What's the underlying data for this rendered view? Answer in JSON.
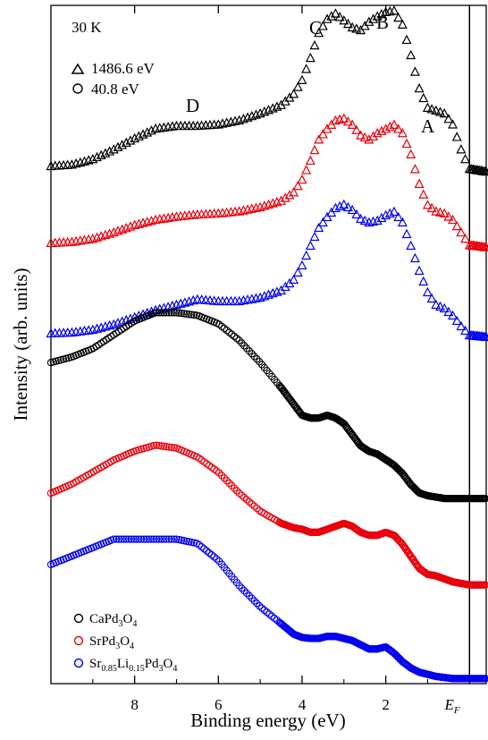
{
  "chart_data": {
    "type": "scatter",
    "temperature_label": "30 K",
    "xlabel": "Binding energy (eV)",
    "ylabel": "Intensity (arb. units)",
    "x_reversed": true,
    "xlim": [
      10,
      -0.4
    ],
    "xticks": [
      {
        "value": 8,
        "label": "8"
      },
      {
        "value": 6,
        "label": "6"
      },
      {
        "value": 4,
        "label": "4"
      },
      {
        "value": 2,
        "label": "2"
      }
    ],
    "ef_label": {
      "main": "E",
      "sub": "F"
    },
    "ef_value": 0,
    "grid": false,
    "peak_labels": [
      {
        "text": "D",
        "x": 6.8
      },
      {
        "text": "C",
        "x": 3.4
      },
      {
        "text": "B",
        "x": 1.75
      },
      {
        "text": "A",
        "x": 0.6
      }
    ],
    "photon_legend": [
      {
        "marker": "triangle",
        "label": "1486.6 eV"
      },
      {
        "marker": "circle",
        "label": "40.8 eV"
      }
    ],
    "sample_legend": [
      {
        "color": "#000000",
        "parts": [
          {
            "t": "CaPd"
          },
          {
            "t": "3",
            "sub": true
          },
          {
            "t": "O"
          },
          {
            "t": "4",
            "sub": true
          }
        ]
      },
      {
        "color": "#e8000b",
        "parts": [
          {
            "t": "SrPd"
          },
          {
            "t": "3",
            "sub": true
          },
          {
            "t": "O"
          },
          {
            "t": "4",
            "sub": true
          }
        ]
      },
      {
        "color": "#0000ee",
        "parts": [
          {
            "t": "Sr"
          },
          {
            "t": "0.85",
            "sub": true
          },
          {
            "t": "Li"
          },
          {
            "t": "0.15",
            "sub": true
          },
          {
            "t": "Pd"
          },
          {
            "t": "3",
            "sub": true
          },
          {
            "t": "O"
          },
          {
            "t": "4",
            "sub": true
          }
        ]
      }
    ],
    "series": [
      {
        "name": "CaPd3O4",
        "photon": "1486.6 eV",
        "marker": "triangle",
        "color": "#000000",
        "x": [
          10.0,
          9.5,
          9.0,
          8.5,
          8.0,
          7.5,
          7.0,
          6.5,
          6.0,
          5.5,
          5.0,
          4.5,
          4.2,
          4.0,
          3.8,
          3.6,
          3.4,
          3.2,
          3.0,
          2.8,
          2.6,
          2.4,
          2.2,
          2.0,
          1.8,
          1.6,
          1.4,
          1.2,
          1.0,
          0.8,
          0.6,
          0.4,
          0.2,
          0.0,
          -0.4
        ],
        "y": [
          0.0,
          0.01,
          0.05,
          0.12,
          0.2,
          0.27,
          0.29,
          0.29,
          0.3,
          0.33,
          0.38,
          0.44,
          0.52,
          0.62,
          0.78,
          0.96,
          1.06,
          1.1,
          1.05,
          1.0,
          0.98,
          1.04,
          1.08,
          1.11,
          1.12,
          1.02,
          0.8,
          0.56,
          0.42,
          0.4,
          0.38,
          0.3,
          0.12,
          -0.02,
          -0.04
        ]
      },
      {
        "name": "SrPd3O4",
        "photon": "1486.6 eV",
        "marker": "triangle",
        "color": "#e8000b",
        "x": [
          10.0,
          9.5,
          9.0,
          8.5,
          8.0,
          7.5,
          7.0,
          6.5,
          6.0,
          5.5,
          5.0,
          4.5,
          4.2,
          4.0,
          3.8,
          3.6,
          3.4,
          3.2,
          3.0,
          2.8,
          2.6,
          2.4,
          2.2,
          2.0,
          1.8,
          1.6,
          1.4,
          1.2,
          1.0,
          0.8,
          0.6,
          0.4,
          0.2,
          0.0,
          -0.4
        ],
        "y": [
          0.0,
          0.01,
          0.04,
          0.1,
          0.17,
          0.22,
          0.25,
          0.27,
          0.28,
          0.3,
          0.34,
          0.4,
          0.48,
          0.6,
          0.78,
          0.98,
          1.08,
          1.16,
          1.18,
          1.12,
          1.02,
          0.98,
          1.04,
          1.08,
          1.12,
          1.04,
          0.84,
          0.56,
          0.36,
          0.3,
          0.28,
          0.22,
          0.1,
          -0.02,
          -0.04
        ]
      },
      {
        "name": "Sr0.85Li0.15Pd3O4",
        "photon": "1486.6 eV",
        "marker": "triangle",
        "color": "#0000ee",
        "x": [
          10.0,
          9.5,
          9.0,
          8.5,
          8.0,
          7.5,
          7.0,
          6.5,
          6.0,
          5.5,
          5.0,
          4.5,
          4.2,
          4.0,
          3.8,
          3.6,
          3.4,
          3.2,
          3.0,
          2.8,
          2.6,
          2.4,
          2.2,
          2.0,
          1.8,
          1.6,
          1.4,
          1.2,
          1.0,
          0.8,
          0.6,
          0.4,
          0.2,
          0.0,
          -0.4
        ],
        "y": [
          0.0,
          0.01,
          0.04,
          0.1,
          0.18,
          0.26,
          0.32,
          0.38,
          0.36,
          0.36,
          0.4,
          0.48,
          0.6,
          0.76,
          0.98,
          1.18,
          1.3,
          1.4,
          1.44,
          1.38,
          1.28,
          1.24,
          1.26,
          1.32,
          1.36,
          1.24,
          0.98,
          0.7,
          0.46,
          0.32,
          0.28,
          0.2,
          0.08,
          -0.02,
          -0.04
        ]
      },
      {
        "name": "CaPd3O4",
        "photon": "40.8 eV",
        "marker": "circle",
        "color": "#000000",
        "x": [
          10.0,
          9.5,
          9.0,
          8.5,
          8.0,
          7.5,
          7.0,
          6.5,
          6.0,
          5.5,
          5.0,
          4.5,
          4.2,
          4.0,
          3.8,
          3.6,
          3.4,
          3.2,
          3.0,
          2.8,
          2.6,
          2.4,
          2.2,
          2.0,
          1.8,
          1.6,
          1.4,
          1.2,
          1.0,
          0.8,
          0.6,
          0.4,
          0.2,
          0.0,
          -0.4
        ],
        "y": [
          0.96,
          1.0,
          1.06,
          1.16,
          1.26,
          1.32,
          1.32,
          1.3,
          1.24,
          1.12,
          0.96,
          0.78,
          0.66,
          0.58,
          0.56,
          0.56,
          0.58,
          0.56,
          0.52,
          0.44,
          0.36,
          0.32,
          0.3,
          0.26,
          0.22,
          0.16,
          0.08,
          0.02,
          0.0,
          -0.01,
          -0.02,
          -0.02,
          -0.02,
          -0.02,
          -0.02
        ]
      },
      {
        "name": "SrPd3O4",
        "photon": "40.8 eV",
        "marker": "circle",
        "color": "#e8000b",
        "x": [
          10.0,
          9.5,
          9.0,
          8.5,
          8.0,
          7.5,
          7.0,
          6.5,
          6.0,
          5.5,
          5.0,
          4.5,
          4.2,
          4.0,
          3.8,
          3.6,
          3.4,
          3.2,
          3.0,
          2.8,
          2.6,
          2.4,
          2.2,
          2.0,
          1.8,
          1.6,
          1.4,
          1.2,
          1.0,
          0.8,
          0.6,
          0.4,
          0.2,
          0.0,
          -0.4
        ],
        "y": [
          0.6,
          0.66,
          0.74,
          0.82,
          0.88,
          0.92,
          0.9,
          0.84,
          0.74,
          0.6,
          0.48,
          0.4,
          0.37,
          0.36,
          0.34,
          0.34,
          0.36,
          0.38,
          0.4,
          0.38,
          0.34,
          0.32,
          0.32,
          0.34,
          0.32,
          0.26,
          0.18,
          0.1,
          0.06,
          0.05,
          0.03,
          0.01,
          0.0,
          -0.01,
          -0.01
        ]
      },
      {
        "name": "Sr0.85Li0.15Pd3O4",
        "photon": "40.8 eV",
        "marker": "circle",
        "color": "#0000ee",
        "x": [
          10.0,
          9.5,
          9.0,
          8.5,
          8.0,
          7.5,
          7.0,
          6.5,
          6.0,
          5.5,
          5.0,
          4.5,
          4.2,
          4.0,
          3.8,
          3.6,
          3.4,
          3.2,
          3.0,
          2.8,
          2.6,
          2.4,
          2.2,
          2.0,
          1.8,
          1.6,
          1.4,
          1.2,
          1.0,
          0.8,
          0.6,
          0.4,
          0.2,
          0.0,
          -0.4
        ],
        "y": [
          1.06,
          1.14,
          1.22,
          1.3,
          1.3,
          1.3,
          1.3,
          1.26,
          1.1,
          0.86,
          0.66,
          0.5,
          0.4,
          0.37,
          0.36,
          0.36,
          0.38,
          0.38,
          0.36,
          0.34,
          0.3,
          0.26,
          0.26,
          0.28,
          0.22,
          0.14,
          0.08,
          0.04,
          0.02,
          0.0,
          -0.01,
          -0.02,
          -0.02,
          -0.02,
          -0.02
        ]
      }
    ]
  }
}
